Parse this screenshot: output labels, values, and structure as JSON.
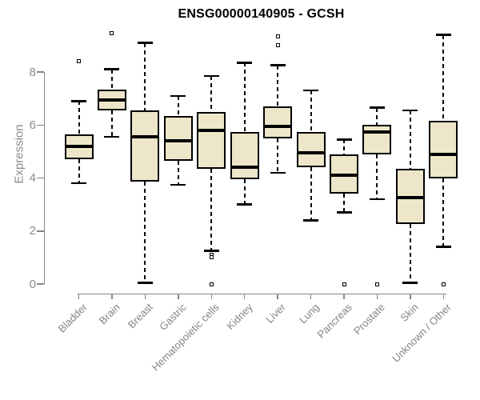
{
  "chart_data": {
    "type": "boxplot",
    "title": "ENSG00000140905 - GCSH",
    "ylabel": "Expression",
    "xlabel": "",
    "yticks": [
      0,
      2,
      4,
      6,
      8
    ],
    "ylim": [
      0,
      9.6
    ],
    "grid": false,
    "legend": "none",
    "colors": {
      "box_fill": "#EDE6C9",
      "box_border": "#000000",
      "axis": "#878787",
      "tick_label": "#8b8b8b",
      "title": "#000000"
    },
    "categories": [
      "Bladder",
      "Brain",
      "Breast",
      "Gastric",
      "Hematopoietic cells",
      "Kidney",
      "Liver",
      "Lung",
      "Pancreas",
      "Prostate",
      "Skin",
      "Unknown / Other"
    ],
    "boxes": [
      {
        "category": "Bladder",
        "whisker_low": 3.8,
        "q1": 4.7,
        "median": 5.2,
        "q3": 5.65,
        "whisker_high": 6.9,
        "outliers": [
          8.4
        ]
      },
      {
        "category": "Brain",
        "whisker_low": 5.55,
        "q1": 6.55,
        "median": 6.95,
        "q3": 7.35,
        "whisker_high": 8.1,
        "outliers": [
          9.45
        ]
      },
      {
        "category": "Breast",
        "whisker_low": 0.05,
        "q1": 3.85,
        "median": 5.55,
        "q3": 6.55,
        "whisker_high": 9.1,
        "outliers": []
      },
      {
        "category": "Gastric",
        "whisker_low": 3.75,
        "q1": 4.65,
        "median": 5.4,
        "q3": 6.35,
        "whisker_high": 7.1,
        "outliers": []
      },
      {
        "category": "Hematopoietic cells",
        "whisker_low": 1.25,
        "q1": 4.35,
        "median": 5.8,
        "q3": 6.5,
        "whisker_high": 7.85,
        "outliers": [
          1.1,
          1.0,
          0.0
        ]
      },
      {
        "category": "Kidney",
        "whisker_low": 3.0,
        "q1": 3.95,
        "median": 4.4,
        "q3": 5.75,
        "whisker_high": 8.35,
        "outliers": []
      },
      {
        "category": "Liver",
        "whisker_low": 4.2,
        "q1": 5.5,
        "median": 5.95,
        "q3": 6.7,
        "whisker_high": 8.25,
        "outliers": [
          9.35,
          9.0
        ]
      },
      {
        "category": "Lung",
        "whisker_low": 2.4,
        "q1": 4.4,
        "median": 4.95,
        "q3": 5.75,
        "whisker_high": 7.3,
        "outliers": []
      },
      {
        "category": "Pancreas",
        "whisker_low": 2.7,
        "q1": 3.4,
        "median": 4.1,
        "q3": 4.9,
        "whisker_high": 5.45,
        "outliers": [
          0.0
        ]
      },
      {
        "category": "Prostate",
        "whisker_low": 3.2,
        "q1": 4.9,
        "median": 5.75,
        "q3": 6.0,
        "whisker_high": 6.65,
        "outliers": [
          0.0
        ]
      },
      {
        "category": "Skin",
        "whisker_low": 0.05,
        "q1": 2.25,
        "median": 3.25,
        "q3": 4.35,
        "whisker_high": 6.55,
        "outliers": []
      },
      {
        "category": "Unknown / Other",
        "whisker_low": 1.4,
        "q1": 4.0,
        "median": 4.9,
        "q3": 6.15,
        "whisker_high": 9.4,
        "outliers": [
          0.0
        ]
      }
    ]
  }
}
